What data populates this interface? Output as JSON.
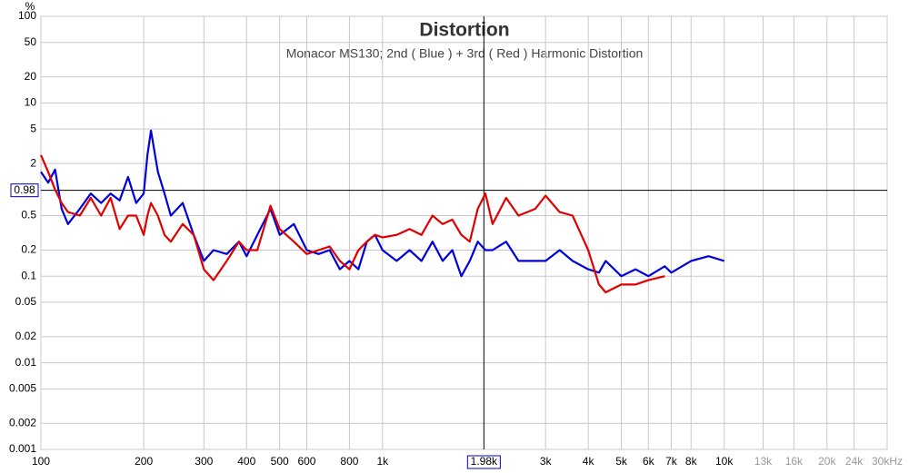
{
  "chart_data": {
    "type": "line",
    "title": "Distortion",
    "subtitle": "Monacor MS130;   2nd ( Blue ) + 3rd ( Red ) Harmonic Distortion",
    "y_unit": "%",
    "xscale": "log",
    "yscale": "log",
    "grid": true,
    "xlim": [
      100,
      30000
    ],
    "ylim": [
      0.001,
      100
    ],
    "xticks": [
      100,
      200,
      300,
      400,
      500,
      600,
      800,
      {
        "value": 1000,
        "label": "1k"
      },
      {
        "value": 3000,
        "label": "3k"
      },
      {
        "value": 4000,
        "label": "4k"
      },
      {
        "value": 5000,
        "label": "5k"
      },
      {
        "value": 6000,
        "label": "6k"
      },
      {
        "value": 7000,
        "label": "7k"
      },
      {
        "value": 8000,
        "label": "8k"
      },
      {
        "value": 10000,
        "label": "10k"
      },
      {
        "value": 13000,
        "label": "13k",
        "muted": true
      },
      {
        "value": 16000,
        "label": "16k",
        "muted": true
      },
      {
        "value": 20000,
        "label": "20k",
        "muted": true
      },
      {
        "value": 24000,
        "label": "24k",
        "muted": true
      },
      {
        "value": 30000,
        "label": "30kHz",
        "muted": true
      }
    ],
    "yticks": [
      100,
      50,
      20,
      10,
      5,
      2,
      0.5,
      0.2,
      0.1,
      0.05,
      0.02,
      0.01,
      0.005,
      0.002,
      0.001
    ],
    "cursor": {
      "x": {
        "value": 1980,
        "label": "1.98k"
      },
      "y": 0.98
    },
    "x": [
      100,
      105,
      110,
      115,
      120,
      130,
      140,
      150,
      160,
      170,
      180,
      190,
      200,
      205,
      210,
      220,
      230,
      240,
      260,
      280,
      300,
      320,
      350,
      380,
      400,
      430,
      470,
      500,
      550,
      600,
      650,
      700,
      750,
      800,
      850,
      900,
      950,
      1000,
      1100,
      1200,
      1300,
      1400,
      1500,
      1600,
      1700,
      1800,
      1900,
      2000,
      2100,
      2300,
      2500,
      2800,
      3000,
      3300,
      3600,
      4000,
      4300,
      4500,
      5000,
      5500,
      6000,
      6700,
      7000,
      8000,
      9000,
      10000
    ],
    "series": [
      {
        "name": "2nd",
        "color": "#0000dd",
        "values": [
          1.6,
          1.2,
          1.7,
          0.6,
          0.4,
          0.6,
          0.9,
          0.7,
          0.9,
          0.75,
          1.4,
          0.7,
          0.9,
          2.5,
          4.8,
          1.6,
          0.9,
          0.5,
          0.7,
          0.3,
          0.15,
          0.2,
          0.18,
          0.25,
          0.17,
          0.3,
          0.6,
          0.3,
          0.4,
          0.2,
          0.18,
          0.2,
          0.12,
          0.15,
          0.12,
          0.25,
          0.3,
          0.2,
          0.15,
          0.2,
          0.15,
          0.25,
          0.15,
          0.2,
          0.1,
          0.15,
          0.25,
          0.2,
          0.2,
          0.25,
          0.15,
          0.15,
          0.15,
          0.2,
          0.15,
          0.12,
          0.11,
          0.15,
          0.1,
          0.12,
          0.1,
          0.13,
          0.11,
          0.15,
          0.17,
          0.15
        ]
      },
      {
        "name": "3rd",
        "color": "#e00000",
        "values": [
          2.5,
          1.6,
          1.0,
          0.7,
          0.55,
          0.5,
          0.8,
          0.5,
          0.8,
          0.35,
          0.5,
          0.5,
          0.3,
          0.5,
          0.7,
          0.5,
          0.3,
          0.25,
          0.4,
          0.3,
          0.12,
          0.09,
          0.15,
          0.25,
          0.2,
          0.2,
          0.65,
          0.35,
          0.25,
          0.18,
          0.2,
          0.22,
          0.15,
          0.12,
          0.2,
          0.25,
          0.3,
          0.28,
          0.3,
          0.35,
          0.3,
          0.5,
          0.4,
          0.45,
          0.3,
          0.25,
          0.6,
          0.9,
          0.4,
          0.8,
          0.5,
          0.6,
          0.85,
          0.55,
          0.5,
          0.2,
          0.08,
          0.065,
          0.08,
          0.08,
          0.09,
          0.1,
          null,
          null,
          null,
          null
        ]
      }
    ]
  }
}
